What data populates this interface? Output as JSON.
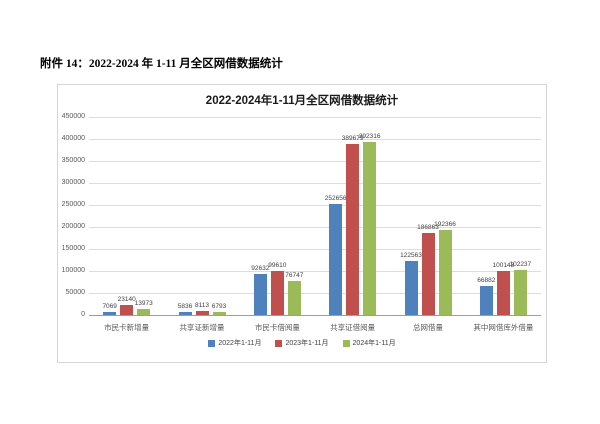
{
  "doc": {
    "heading": "附件 14：2022-2024 年 1-11 月全区网借数据统计"
  },
  "chart_data": {
    "type": "bar",
    "title": "2022-2024年1-11月全区网借数据统计",
    "categories": [
      "市民卡新增量",
      "共享证新增量",
      "市民卡借阅量",
      "共享证借阅量",
      "总网借量",
      "其中网借库外借量"
    ],
    "series": [
      {
        "name": "2022年1-11月",
        "color": "#4f81bd",
        "values": [
          7069,
          5836,
          92632,
          252656,
          122563,
          66882
        ]
      },
      {
        "name": "2023年1-11月",
        "color": "#c0504d",
        "values": [
          23140,
          8113,
          99610,
          389679,
          186863,
          100143
        ]
      },
      {
        "name": "2024年1-11月",
        "color": "#9bbb59",
        "values": [
          13973,
          6793,
          76747,
          392316,
          192366,
          102237
        ]
      }
    ],
    "xlabel": "",
    "ylabel": "",
    "ylim": [
      0,
      450000
    ],
    "ytick_step": 50000,
    "grid": true,
    "legend_position": "bottom",
    "colors": {
      "gridline": "#dcdcdc",
      "axis_line": "#9d9d9d",
      "tick_text": "#595959",
      "label_text": "#3f3f3f"
    }
  }
}
